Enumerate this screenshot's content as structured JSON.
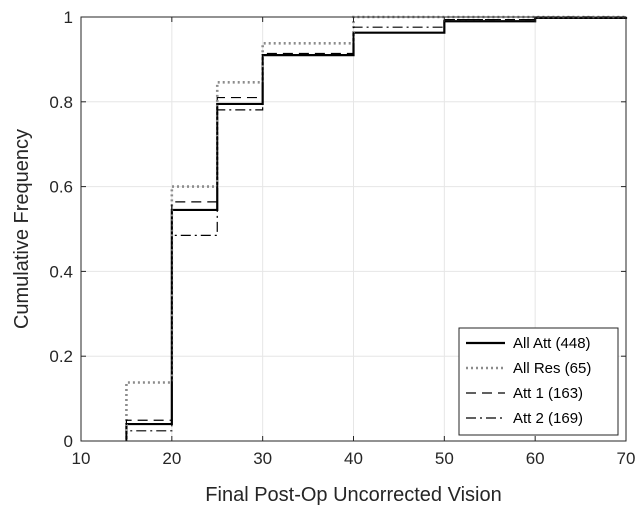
{
  "chart_data": {
    "type": "line",
    "step": "post",
    "title": "",
    "xlabel": "Final Post-Op Uncorrected Vision",
    "ylabel": "Cumulative Frequency",
    "xlim": [
      10,
      70
    ],
    "ylim": [
      0,
      1
    ],
    "xticks": [
      10,
      20,
      30,
      40,
      50,
      60,
      70
    ],
    "yticks": [
      0,
      0.2,
      0.4,
      0.6,
      0.8,
      1
    ],
    "ytick_labels": [
      "0",
      "0.2",
      "0.4",
      "0.6",
      "0.8",
      "1"
    ],
    "grid": true,
    "legend_position": "bottom-right",
    "series": [
      {
        "name": "All Att (448)",
        "color": "#000000",
        "dash": "solid",
        "x": [
          15,
          15,
          20,
          25,
          30,
          40,
          50,
          60,
          70
        ],
        "y": [
          0,
          0.04,
          0.545,
          0.795,
          0.91,
          0.963,
          0.99,
          0.998,
          1.0
        ]
      },
      {
        "name": "All Res (65)",
        "color": "#8c8c8c",
        "dash": "dotted",
        "x": [
          15,
          15,
          20,
          25,
          30,
          40,
          50,
          60,
          70
        ],
        "y": [
          0,
          0.138,
          0.6,
          0.846,
          0.938,
          1.0,
          1.0,
          1.0,
          1.0
        ]
      },
      {
        "name": "Att 1 (163)",
        "color": "#000000",
        "dash": "dashed",
        "x": [
          15,
          15,
          20,
          25,
          30,
          40,
          50,
          60,
          70
        ],
        "y": [
          0,
          0.049,
          0.564,
          0.81,
          0.914,
          0.963,
          0.994,
          1.0,
          1.0
        ]
      },
      {
        "name": "Att 2 (169)",
        "color": "#000000",
        "dash": "dashdot",
        "x": [
          15,
          15,
          20,
          25,
          30,
          40,
          50,
          60,
          70
        ],
        "y": [
          0,
          0.024,
          0.485,
          0.781,
          0.91,
          0.976,
          0.994,
          1.0,
          1.0
        ]
      }
    ]
  }
}
